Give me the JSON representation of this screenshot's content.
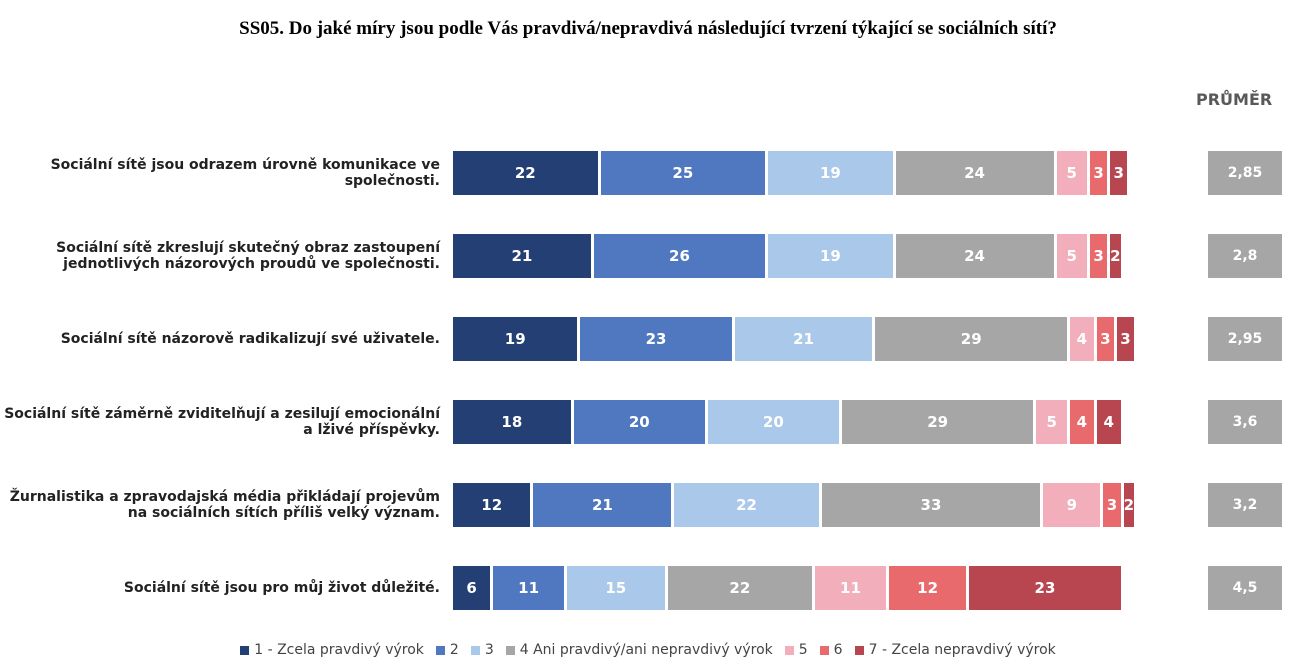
{
  "chart_data": {
    "type": "stacked_bar_horizontal",
    "title": "SS05. Do jaké míry jsou podle Vás pravdivá/nepravdivá následující tvrzení týkající se sociálních sítí?",
    "categories": [
      "Sociální sítě jsou odrazem úrovně komunikace ve společnosti.",
      "Sociální sítě zkreslují skutečný obraz zastoupení jednotlivých názorových proudů ve společnosti.",
      "Sociální sítě názorově radikalizují své uživatele.",
      "Sociální sítě záměrně zviditelňují a zesilují emocionální a lživé příspěvky.",
      "Žurnalistika a zpravodajská média přikládají projevům na sociálních sítích příliš velký význam.",
      "Sociální sítě jsou pro můj život důležité."
    ],
    "series": [
      {
        "name": "1 - Zcela pravdivý výrok",
        "color": "#243f73",
        "values": [
          22,
          21,
          19,
          18,
          12,
          6
        ]
      },
      {
        "name": "2",
        "color": "#4f78c0",
        "values": [
          25,
          26,
          23,
          20,
          21,
          11
        ]
      },
      {
        "name": "3",
        "color": "#a9c8ea",
        "values": [
          19,
          19,
          21,
          20,
          22,
          15
        ]
      },
      {
        "name": "4 Ani pravdivý/ani nepravdivý výrok",
        "color": "#a6a6a6",
        "values": [
          24,
          24,
          29,
          29,
          33,
          22
        ]
      },
      {
        "name": "5",
        "color": "#f2aebb",
        "values": [
          5,
          5,
          4,
          5,
          9,
          11
        ]
      },
      {
        "name": "6",
        "color": "#e96a6c",
        "values": [
          3,
          3,
          3,
          4,
          3,
          12
        ]
      },
      {
        "name": "7 - Zcela nepravdivý výrok",
        "color": "#b84650",
        "values": [
          3,
          2,
          3,
          4,
          2,
          23
        ]
      }
    ],
    "averages": {
      "title": "PRŮMĚR",
      "color": "#a6a6a6",
      "values": [
        2.85,
        2.8,
        2.95,
        3.6,
        3.2,
        4.5
      ],
      "value_labels": [
        "2,85",
        "2,8",
        "2,95",
        "3,6",
        "3,2",
        "4,5"
      ]
    }
  }
}
